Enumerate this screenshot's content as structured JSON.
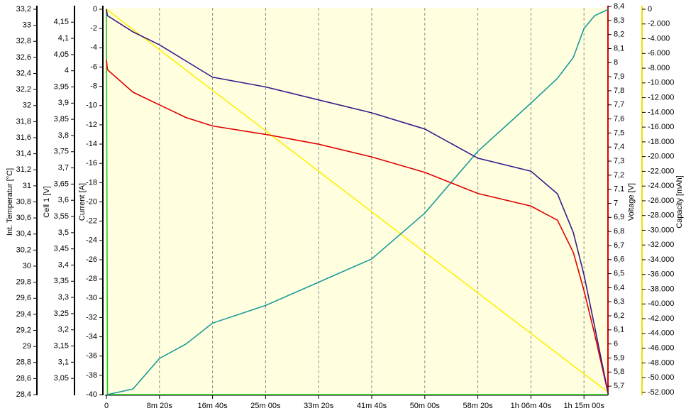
{
  "chart_data": {
    "type": "line",
    "x": [
      0,
      10,
      250,
      500,
      750,
      1000,
      1500,
      2000,
      2500,
      3000,
      3500,
      4000,
      4250,
      4400,
      4500,
      4600,
      4730
    ],
    "xlim": [
      0,
      4726
    ],
    "xticks": [
      0,
      {
        "value": 500,
        "label": "8m 20s"
      },
      {
        "value": 1000,
        "label": "16m 40s"
      },
      {
        "value": 1500,
        "label": "25m 00s"
      },
      {
        "value": 2000,
        "label": "33m 20s"
      },
      {
        "value": 2500,
        "label": "41m 40s"
      },
      {
        "value": 3000,
        "label": "50m 00s"
      },
      {
        "value": 3500,
        "label": "58m 20s"
      },
      {
        "value": 4000,
        "label": "1h 06m 40s"
      },
      {
        "value": 4500,
        "label": "1h 15m 00s"
      }
    ],
    "x_grid": true,
    "axes": [
      {
        "label": "Int. Temperatur [°C]",
        "color": "#000000",
        "ylim": [
          28.4,
          33.2
        ],
        "yticks": [
          {
            "value": 28.4,
            "label": "28,4"
          },
          {
            "value": 28.6,
            "label": "28,6"
          },
          {
            "value": 28.8,
            "label": "28,8"
          },
          29,
          {
            "value": 29.2,
            "label": "29,2"
          },
          {
            "value": 29.4,
            "label": "29,4"
          },
          {
            "value": 29.6,
            "label": "29,6"
          },
          {
            "value": 29.8,
            "label": "29,8"
          },
          30,
          {
            "value": 30.2,
            "label": "30,2"
          },
          {
            "value": 30.4,
            "label": "30,4"
          },
          {
            "value": 30.6,
            "label": "30,6"
          },
          {
            "value": 30.8,
            "label": "30,8"
          },
          31,
          {
            "value": 31.2,
            "label": "31,2"
          },
          {
            "value": 31.4,
            "label": "31,4"
          },
          {
            "value": 31.6,
            "label": "31,6"
          },
          {
            "value": 31.8,
            "label": "31,8"
          },
          32,
          {
            "value": 32.2,
            "label": "32,2"
          },
          {
            "value": 32.4,
            "label": "32,4"
          },
          {
            "value": 32.6,
            "label": "32,6"
          },
          {
            "value": 32.8,
            "label": "32,8"
          },
          33,
          {
            "value": 33.2,
            "label": "33,2"
          }
        ]
      },
      {
        "label": "Cell 1 [V]",
        "color": "#000000",
        "ylim": [
          3.0,
          4.19
        ],
        "yticks": [
          {
            "value": 3.05,
            "label": "3,05"
          },
          {
            "value": 3.1,
            "label": "3,1"
          },
          {
            "value": 3.15,
            "label": "3,15"
          },
          {
            "value": 3.2,
            "label": "3,2"
          },
          {
            "value": 3.25,
            "label": "3,25"
          },
          {
            "value": 3.3,
            "label": "3,3"
          },
          {
            "value": 3.35,
            "label": "3,35"
          },
          {
            "value": 3.4,
            "label": "3,4"
          },
          {
            "value": 3.45,
            "label": "3,45"
          },
          {
            "value": 3.5,
            "label": "3,5"
          },
          {
            "value": 3.55,
            "label": "3,55"
          },
          {
            "value": 3.6,
            "label": "3,6"
          },
          {
            "value": 3.65,
            "label": "3,65"
          },
          {
            "value": 3.7,
            "label": "3,7"
          },
          {
            "value": 3.75,
            "label": "3,75"
          },
          {
            "value": 3.8,
            "label": "3,8"
          },
          {
            "value": 3.85,
            "label": "3,85"
          },
          {
            "value": 3.9,
            "label": "3,9"
          },
          {
            "value": 3.95,
            "label": "3,95"
          },
          4,
          {
            "value": 4.05,
            "label": "4,05"
          },
          {
            "value": 4.1,
            "label": "4,1"
          },
          {
            "value": 4.15,
            "label": "4,15"
          }
        ]
      },
      {
        "label": "Current [A]",
        "color": "#000000",
        "ylim": [
          -40,
          0
        ],
        "yticks": [
          -40,
          -38,
          -36,
          -34,
          -32,
          -30,
          -28,
          -26,
          -24,
          -22,
          -20,
          -18,
          -16,
          -14,
          -12,
          -10,
          -8,
          -6,
          -4,
          -2,
          0
        ]
      },
      {
        "label": "Voltage [V]",
        "color": "#e00000",
        "ylim": [
          5.64,
          8.38
        ],
        "yticks": [
          {
            "value": 5.7,
            "label": "5,7"
          },
          {
            "value": 5.8,
            "label": "5,8"
          },
          {
            "value": 5.9,
            "label": "5,9"
          },
          6,
          {
            "value": 6.1,
            "label": "6,1"
          },
          {
            "value": 6.2,
            "label": "6,2"
          },
          {
            "value": 6.3,
            "label": "6,3"
          },
          {
            "value": 6.4,
            "label": "6,4"
          },
          {
            "value": 6.5,
            "label": "6,5"
          },
          {
            "value": 6.6,
            "label": "6,6"
          },
          {
            "value": 6.7,
            "label": "6,7"
          },
          {
            "value": 6.8,
            "label": "6,8"
          },
          {
            "value": 6.9,
            "label": "6,9"
          },
          7,
          {
            "value": 7.1,
            "label": "7,1"
          },
          {
            "value": 7.2,
            "label": "7,2"
          },
          {
            "value": 7.3,
            "label": "7,3"
          },
          {
            "value": 7.4,
            "label": "7,4"
          },
          {
            "value": 7.5,
            "label": "7,5"
          },
          {
            "value": 7.6,
            "label": "7,6"
          },
          {
            "value": 7.7,
            "label": "7,7"
          },
          {
            "value": 7.8,
            "label": "7,8"
          },
          {
            "value": 7.9,
            "label": "7,9"
          },
          8,
          {
            "value": 8.1,
            "label": "8,1"
          },
          {
            "value": 8.2,
            "label": "8,2"
          },
          {
            "value": 8.3,
            "label": "8,3"
          },
          {
            "value": 8.4,
            "label": "8,4"
          }
        ]
      },
      {
        "label": "Capacity [mAh]",
        "color": "#f0e000",
        "ylim": [
          -52300,
          0
        ],
        "yticks": [
          {
            "value": -52000,
            "label": "-52.000"
          },
          {
            "value": -50000,
            "label": "-50.000"
          },
          {
            "value": -48000,
            "label": "-48.000"
          },
          {
            "value": -46000,
            "label": "-46.000"
          },
          {
            "value": -44000,
            "label": "-44.000"
          },
          {
            "value": -42000,
            "label": "-42.000"
          },
          {
            "value": -40000,
            "label": "-40.000"
          },
          {
            "value": -38000,
            "label": "-38.000"
          },
          {
            "value": -36000,
            "label": "-36.000"
          },
          {
            "value": -34000,
            "label": "-34.000"
          },
          {
            "value": -32000,
            "label": "-32.000"
          },
          {
            "value": -30000,
            "label": "-30.000"
          },
          {
            "value": -28000,
            "label": "-28.000"
          },
          {
            "value": -26000,
            "label": "-26.000"
          },
          {
            "value": -24000,
            "label": "-24.000"
          },
          {
            "value": -22000,
            "label": "-22.000"
          },
          {
            "value": -20000,
            "label": "-20.000"
          },
          {
            "value": -18000,
            "label": "-18.000"
          },
          {
            "value": -16000,
            "label": "-16.000"
          },
          {
            "value": -14000,
            "label": "-14.000"
          },
          {
            "value": -12000,
            "label": "-12.000"
          },
          {
            "value": -10000,
            "label": "-10.000"
          },
          {
            "value": -8000,
            "label": "-8.000"
          },
          {
            "value": -6000,
            "label": "-6.000"
          },
          {
            "value": -4000,
            "label": "-4.000"
          },
          {
            "value": -2000,
            "label": "-2.000"
          },
          0
        ]
      }
    ],
    "series": [
      {
        "axis": 4,
        "color": "#ffee00",
        "values": [
          0,
          -110,
          -2750,
          -5500,
          -8250,
          -11000,
          -16500,
          -22000,
          -27500,
          -33000,
          -38500,
          -44000,
          -46750,
          -48400,
          -49500,
          -50600,
          -52000
        ]
      },
      {
        "axis": 2,
        "color": "#22cc22",
        "values": [
          0,
          -40,
          -40,
          -40,
          -40,
          -40,
          -40,
          -40,
          -40,
          -40,
          -40,
          -40,
          -40,
          -40,
          -40,
          -40,
          -40
        ]
      },
      {
        "axis": 0,
        "color": "#1a9a9a",
        "values": [
          28.4,
          28.4,
          28.47,
          28.85,
          29.03,
          29.29,
          29.51,
          29.8,
          30.09,
          30.66,
          31.43,
          32.03,
          32.34,
          32.6,
          32.96,
          33.12,
          33.2
        ]
      },
      {
        "axis": 3,
        "color": "#e00000",
        "values": [
          8.02,
          7.95,
          7.79,
          7.7,
          7.61,
          7.55,
          7.49,
          7.42,
          7.33,
          7.22,
          7.07,
          6.98,
          6.88,
          6.65,
          6.38,
          6.07,
          5.64
        ]
      },
      {
        "axis": 1,
        "color": "#3a1a8a",
        "values": [
          4.19,
          4.17,
          4.12,
          4.08,
          4.03,
          3.98,
          3.95,
          3.91,
          3.87,
          3.82,
          3.73,
          3.69,
          3.62,
          3.5,
          3.37,
          3.21,
          3.0
        ]
      }
    ]
  }
}
